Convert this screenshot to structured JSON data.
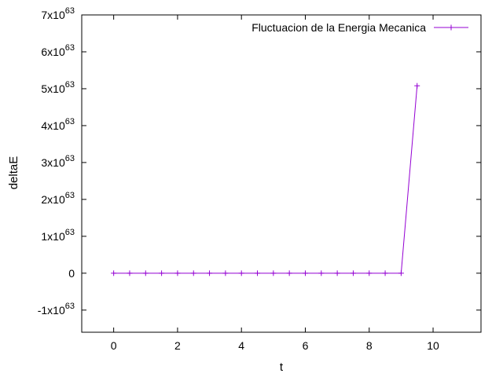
{
  "chart_data": {
    "type": "line",
    "xlabel": "t",
    "ylabel": "deltaE",
    "xlim": [
      -1,
      11.5
    ],
    "ylim": [
      -1.6e+63,
      7e+63
    ],
    "x_ticks": [
      {
        "value": 0,
        "label": "0"
      },
      {
        "value": 2,
        "label": "2"
      },
      {
        "value": 4,
        "label": "4"
      },
      {
        "value": 6,
        "label": "6"
      },
      {
        "value": 8,
        "label": "8"
      },
      {
        "value": 10,
        "label": "10"
      }
    ],
    "y_ticks": [
      {
        "value": -1e+63,
        "mantissa": "-1x10",
        "exponent": "63"
      },
      {
        "value": 0,
        "mantissa": "0",
        "exponent": ""
      },
      {
        "value": 1e+63,
        "mantissa": "1x10",
        "exponent": "63"
      },
      {
        "value": 2e+63,
        "mantissa": "2x10",
        "exponent": "63"
      },
      {
        "value": 3e+63,
        "mantissa": "3x10",
        "exponent": "63"
      },
      {
        "value": 4e+63,
        "mantissa": "4x10",
        "exponent": "63"
      },
      {
        "value": 5e+63,
        "mantissa": "5x10",
        "exponent": "63"
      },
      {
        "value": 6e+63,
        "mantissa": "6x10",
        "exponent": "63"
      },
      {
        "value": 7e+63,
        "mantissa": "7x10",
        "exponent": "63"
      }
    ],
    "grid": false,
    "legend_position": "top-right",
    "series": [
      {
        "name": "Fluctuacion de la Energia Mecanica",
        "color": "#9400d3",
        "marker": "plus",
        "x": [
          0,
          0.5,
          1,
          1.5,
          2,
          2.5,
          3,
          3.5,
          4,
          4.5,
          5,
          5.5,
          6,
          6.5,
          7,
          7.5,
          8,
          8.5,
          9,
          9.5
        ],
        "y": [
          0,
          0,
          0,
          0,
          0,
          0,
          0,
          0,
          0,
          0,
          0,
          0,
          0,
          0,
          0,
          0,
          0,
          0,
          0,
          5.08e+63
        ]
      }
    ]
  }
}
